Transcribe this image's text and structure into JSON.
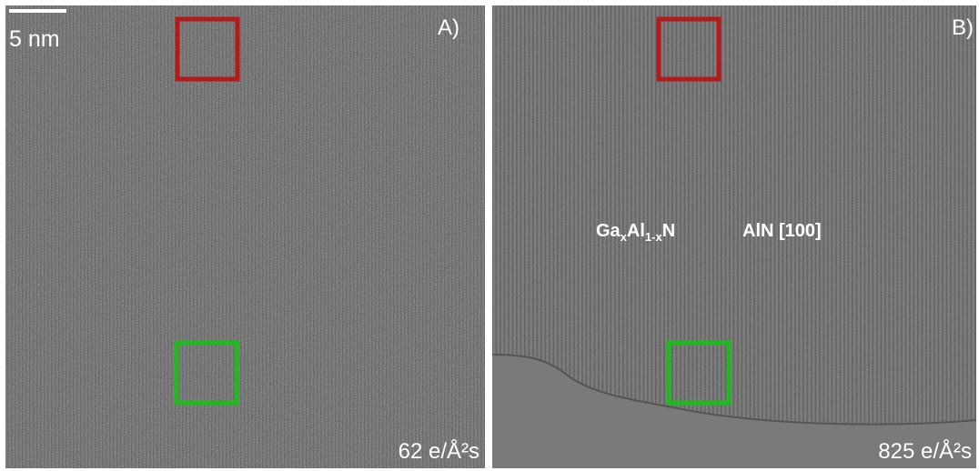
{
  "scale_bar": {
    "label": "5 nm"
  },
  "panels": [
    {
      "label": "A)",
      "dose": "62 e/Å²s"
    },
    {
      "label": "B)",
      "dose": "825 e/Å²s"
    }
  ],
  "annotations": {
    "layer_parts": [
      "Ga",
      "x",
      "Al",
      "1-x",
      "N"
    ],
    "substrate": "AlN [100]"
  }
}
